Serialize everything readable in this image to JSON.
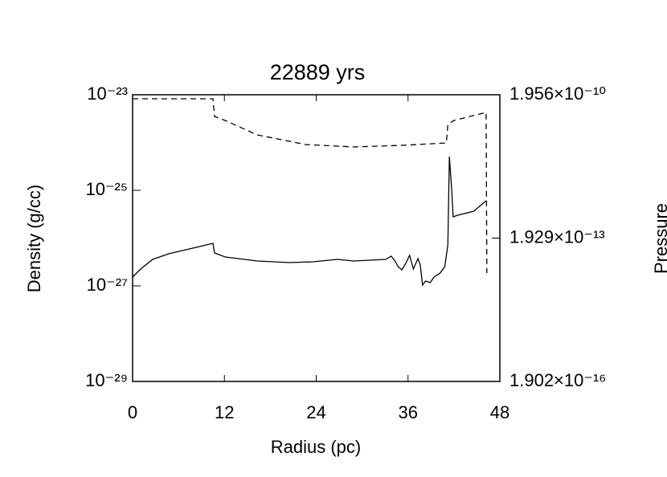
{
  "chart_data": {
    "type": "line",
    "title": "22889 yrs",
    "xlabel": "Radius (pc)",
    "ylabel": "Density (g/cc)",
    "y2label": "Pressure",
    "xlim": [
      0,
      48
    ],
    "xticks": [
      0,
      12,
      24,
      36,
      48
    ],
    "ylim": [
      1e-29,
      1e-23
    ],
    "ylog": true,
    "yticks": [
      {
        "value": 1e-23,
        "label": "10⁻²³"
      },
      {
        "value": 1e-25,
        "label": "10⁻²⁵"
      },
      {
        "value": 1e-27,
        "label": "10⁻²⁷"
      },
      {
        "value": 1e-29,
        "label": "10⁻²⁹"
      }
    ],
    "y2lim": [
      1.902e-16,
      1.956e-10
    ],
    "y2log": true,
    "y2ticks": [
      {
        "value": 1.956e-10,
        "label": "1.956×10⁻¹⁰"
      },
      {
        "value": 1.929e-13,
        "label": "1.929×10⁻¹³"
      },
      {
        "value": 1.902e-16,
        "label": "1.902×10⁻¹⁶"
      }
    ],
    "series": [
      {
        "color": "#000000",
        "dash": false,
        "x": [
          0,
          1.05,
          2.63,
          4.73,
          7.88,
          10.5,
          10.7,
          12.1,
          16.3,
          20.5,
          23.6,
          25.7,
          26.8,
          28.9,
          33.1,
          33.8,
          34.3,
          34.7,
          35.2,
          35.7,
          36.2,
          36.7,
          37.3,
          37.6,
          37.9,
          38.3,
          38.9,
          39.4,
          40.2,
          40.8,
          41.2,
          41.4,
          41.7,
          41.9,
          42.5,
          44.6,
          46.2
        ],
        "values": [
          1.53e-27,
          2.25e-27,
          3.59e-27,
          4.7e-27,
          6.17e-27,
          7.78e-27,
          4.89e-27,
          4.03e-27,
          3.32e-27,
          3.07e-27,
          3.19e-27,
          3.45e-27,
          3.59e-27,
          3.32e-27,
          3.59e-27,
          4.19e-27,
          3.32e-27,
          2.53e-27,
          2.17e-27,
          2.96e-27,
          4.35e-27,
          2.25e-27,
          3.73e-27,
          2.74e-27,
          1.04e-27,
          1.26e-27,
          1.17e-27,
          1.53e-27,
          1.86e-27,
          2.53e-27,
          7.19e-27,
          5.08e-25,
          1.08e-25,
          2.79e-26,
          3.01e-26,
          3.66e-26,
          6.05e-26
        ]
      },
      {
        "color": "#000000",
        "dash": true,
        "axis": "y2",
        "x": [
          0,
          10.5,
          10.7,
          12.1,
          16.3,
          22.6,
          28.9,
          35.2,
          41.0,
          41.2,
          42.0,
          46.2,
          46.3
        ],
        "values": [
          1.61e-10,
          1.61e-10,
          6.87e-11,
          5.66e-11,
          2.81e-11,
          1.77e-11,
          1.57e-11,
          1.7e-11,
          1.91e-11,
          4.66e-11,
          5.66e-11,
          8.34e-11,
          3.57e-14
        ]
      }
    ]
  }
}
